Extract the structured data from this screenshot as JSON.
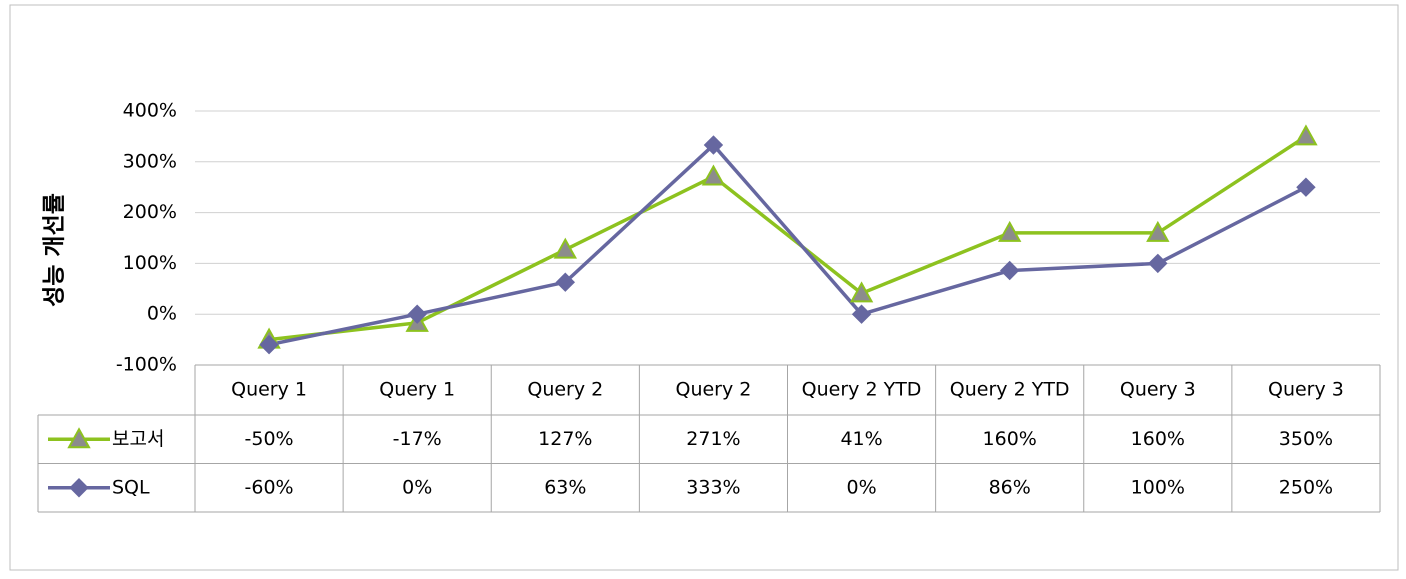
{
  "chart_data": {
    "type": "line",
    "ylabel": "성능 개선률",
    "categories": [
      "Query 1",
      "Query 1",
      "Query 2",
      "Query 2",
      "Query 2 YTD",
      "Query 2 YTD",
      "Query 3",
      "Query 3"
    ],
    "series": [
      {
        "name": "보고서",
        "color": "#8dc21f",
        "marker": "triangle",
        "values": [
          -50,
          -17,
          127,
          271,
          41,
          160,
          160,
          350
        ],
        "value_labels": [
          "-50%",
          "-17%",
          "127%",
          "271%",
          "41%",
          "160%",
          "160%",
          "350%"
        ]
      },
      {
        "name": "SQL",
        "color": "#6667a0",
        "marker": "diamond",
        "values": [
          -60,
          0,
          63,
          333,
          0,
          86,
          100,
          250
        ],
        "value_labels": [
          "-60%",
          "0%",
          "63%",
          "333%",
          "0%",
          "86%",
          "100%",
          "250%"
        ]
      }
    ],
    "ylim": [
      -100,
      400
    ],
    "yticks": [
      {
        "value": -100,
        "label": "-100%"
      },
      {
        "value": 0,
        "label": "0%"
      },
      {
        "value": 100,
        "label": "100%"
      },
      {
        "value": 200,
        "label": "200%"
      },
      {
        "value": 300,
        "label": "300%"
      },
      {
        "value": 400,
        "label": "400%"
      }
    ],
    "grid": true,
    "data_table": true
  }
}
